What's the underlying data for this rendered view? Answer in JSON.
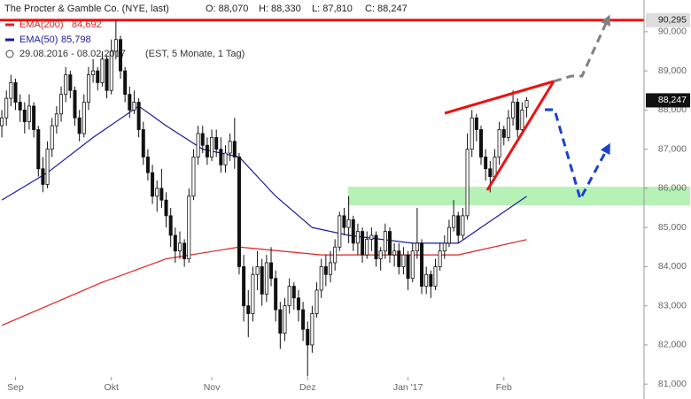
{
  "chart_data": {
    "type": "candlestick",
    "title": "The Procter & Gamble Co. (NYE, last)",
    "ohlc_labels": [
      "O: 88,070",
      "H: 88,330",
      "L: 87,810",
      "C: 88,247"
    ],
    "period": "29.08.2016 - 08.02.2017",
    "period_note": "(EST, 5 Monate, 1 Tag)",
    "candles": [
      [
        87.6,
        88.0,
        87.3,
        87.8
      ],
      [
        87.8,
        88.5,
        87.6,
        88.3
      ],
      [
        88.3,
        88.9,
        88.1,
        88.7
      ],
      [
        88.7,
        88.8,
        88.0,
        88.2
      ],
      [
        88.2,
        88.4,
        87.7,
        88.0
      ],
      [
        88.0,
        88.2,
        87.4,
        87.7
      ],
      [
        87.7,
        88.4,
        87.5,
        88.1
      ],
      [
        88.1,
        88.2,
        87.3,
        87.5
      ],
      [
        87.5,
        87.6,
        86.3,
        86.5
      ],
      [
        86.5,
        86.8,
        85.9,
        86.1
      ],
      [
        86.1,
        87.2,
        86.0,
        87.0
      ],
      [
        87.0,
        87.8,
        86.8,
        87.6
      ],
      [
        87.6,
        88.1,
        87.4,
        87.9
      ],
      [
        87.9,
        88.6,
        87.7,
        88.4
      ],
      [
        88.4,
        89.1,
        88.2,
        88.9
      ],
      [
        88.9,
        89.0,
        88.3,
        88.5
      ],
      [
        88.5,
        88.6,
        87.6,
        87.8
      ],
      [
        87.8,
        88.0,
        87.2,
        87.4
      ],
      [
        87.4,
        88.4,
        87.3,
        88.2
      ],
      [
        88.2,
        89.1,
        88.0,
        88.9
      ],
      [
        88.9,
        89.3,
        88.7,
        89.0
      ],
      [
        89.0,
        89.1,
        88.5,
        88.7
      ],
      [
        88.7,
        89.5,
        88.6,
        89.3
      ],
      [
        89.3,
        89.4,
        88.3,
        88.5
      ],
      [
        88.5,
        89.8,
        88.4,
        89.5
      ],
      [
        89.5,
        90.3,
        89.3,
        89.8
      ],
      [
        89.8,
        89.9,
        88.8,
        89.0
      ],
      [
        89.0,
        89.1,
        88.2,
        88.4
      ],
      [
        88.4,
        88.6,
        87.8,
        88.0
      ],
      [
        88.0,
        88.5,
        87.9,
        88.2
      ],
      [
        88.2,
        88.3,
        87.3,
        87.5
      ],
      [
        87.5,
        87.7,
        86.6,
        86.8
      ],
      [
        86.8,
        87.0,
        86.2,
        86.4
      ],
      [
        86.4,
        86.6,
        85.6,
        85.8
      ],
      [
        85.8,
        86.2,
        85.4,
        86.0
      ],
      [
        86.0,
        86.5,
        85.5,
        85.7
      ],
      [
        85.7,
        85.9,
        85.0,
        85.3
      ],
      [
        85.3,
        85.5,
        84.5,
        84.8
      ],
      [
        84.8,
        85.0,
        84.1,
        84.4
      ],
      [
        84.4,
        84.9,
        84.2,
        84.6
      ],
      [
        84.6,
        84.7,
        84.0,
        84.2
      ],
      [
        84.2,
        86.0,
        84.1,
        85.8
      ],
      [
        85.8,
        87.0,
        85.7,
        86.8
      ],
      [
        86.8,
        87.6,
        86.6,
        87.4
      ],
      [
        87.4,
        87.6,
        86.9,
        87.1
      ],
      [
        87.1,
        87.3,
        86.6,
        86.8
      ],
      [
        86.8,
        87.5,
        86.7,
        87.3
      ],
      [
        87.3,
        87.5,
        86.8,
        87.0
      ],
      [
        87.0,
        87.3,
        86.4,
        86.6
      ],
      [
        86.6,
        87.1,
        86.4,
        86.9
      ],
      [
        86.9,
        87.4,
        86.7,
        87.2
      ],
      [
        87.2,
        87.8,
        86.5,
        86.8
      ],
      [
        86.8,
        86.9,
        83.8,
        84.0
      ],
      [
        84.0,
        84.3,
        82.6,
        83.0
      ],
      [
        83.0,
        83.4,
        82.2,
        82.8
      ],
      [
        82.8,
        84.0,
        82.6,
        83.8
      ],
      [
        83.8,
        84.4,
        83.4,
        84.0
      ],
      [
        84.0,
        84.2,
        83.0,
        83.3
      ],
      [
        83.3,
        84.3,
        83.1,
        84.1
      ],
      [
        84.1,
        84.5,
        83.5,
        83.7
      ],
      [
        83.7,
        83.9,
        82.6,
        82.9
      ],
      [
        82.9,
        83.1,
        81.9,
        82.3
      ],
      [
        82.3,
        83.2,
        82.1,
        83.0
      ],
      [
        83.0,
        83.7,
        82.8,
        83.5
      ],
      [
        83.5,
        83.6,
        82.9,
        83.2
      ],
      [
        83.2,
        83.4,
        82.6,
        82.9
      ],
      [
        82.9,
        83.1,
        82.1,
        82.4
      ],
      [
        82.4,
        82.6,
        81.2,
        82.0
      ],
      [
        82.0,
        83.0,
        81.8,
        82.8
      ],
      [
        82.8,
        83.6,
        82.7,
        83.4
      ],
      [
        83.4,
        84.2,
        83.2,
        84.0
      ],
      [
        84.0,
        84.3,
        83.5,
        83.8
      ],
      [
        83.8,
        84.4,
        83.6,
        84.1
      ],
      [
        84.1,
        84.7,
        83.9,
        84.5
      ],
      [
        84.5,
        85.4,
        84.4,
        85.3
      ],
      [
        85.3,
        85.5,
        84.8,
        85.0
      ],
      [
        85.0,
        85.8,
        84.6,
        85.2
      ],
      [
        85.2,
        85.3,
        84.4,
        84.6
      ],
      [
        84.6,
        85.1,
        84.3,
        84.9
      ],
      [
        84.9,
        85.0,
        84.1,
        84.3
      ],
      [
        84.3,
        84.9,
        84.2,
        84.7
      ],
      [
        84.7,
        85.0,
        84.4,
        84.8
      ],
      [
        84.8,
        84.9,
        84.0,
        84.2
      ],
      [
        84.2,
        84.5,
        83.9,
        84.4
      ],
      [
        84.4,
        85.1,
        84.2,
        84.9
      ],
      [
        84.9,
        85.0,
        84.1,
        84.3
      ],
      [
        84.3,
        84.6,
        84.0,
        84.4
      ],
      [
        84.4,
        84.6,
        83.8,
        84.0
      ],
      [
        84.0,
        84.5,
        83.8,
        84.3
      ],
      [
        84.3,
        84.4,
        83.4,
        83.7
      ],
      [
        83.7,
        84.6,
        83.6,
        84.4
      ],
      [
        84.4,
        85.5,
        84.2,
        84.6
      ],
      [
        84.6,
        84.7,
        83.3,
        83.5
      ],
      [
        83.5,
        84.0,
        83.3,
        83.8
      ],
      [
        83.8,
        83.9,
        83.2,
        83.5
      ],
      [
        83.5,
        84.2,
        83.4,
        84.0
      ],
      [
        84.0,
        84.6,
        83.9,
        84.4
      ],
      [
        84.4,
        84.8,
        84.2,
        84.6
      ],
      [
        84.6,
        85.2,
        84.5,
        85.0
      ],
      [
        85.0,
        85.7,
        84.9,
        85.3
      ],
      [
        85.3,
        85.4,
        84.6,
        84.8
      ],
      [
        84.8,
        85.5,
        84.7,
        85.3
      ],
      [
        85.3,
        87.4,
        85.2,
        87.0
      ],
      [
        87.0,
        88.0,
        86.8,
        87.8
      ],
      [
        87.8,
        87.9,
        87.2,
        87.5
      ],
      [
        87.5,
        87.6,
        86.6,
        86.8
      ],
      [
        86.8,
        87.0,
        86.2,
        86.5
      ],
      [
        86.5,
        86.7,
        85.9,
        86.3
      ],
      [
        86.3,
        87.0,
        86.2,
        86.8
      ],
      [
        86.8,
        87.7,
        86.6,
        87.5
      ],
      [
        87.5,
        87.6,
        87.1,
        87.3
      ],
      [
        87.3,
        88.0,
        87.2,
        87.8
      ],
      [
        87.8,
        88.5,
        87.6,
        88.2
      ],
      [
        88.2,
        88.3,
        87.3,
        87.5
      ],
      [
        87.5,
        88.2,
        87.4,
        88.0
      ],
      [
        88.07,
        88.33,
        87.81,
        88.247
      ]
    ],
    "last_label": "88,247",
    "series": [
      {
        "name": "EMA(200)",
        "value_label": "84,692",
        "color": "#e02020",
        "x": [
          0,
          22,
          36,
          52,
          70,
          90,
          100,
          115
        ],
        "values": [
          82.5,
          83.6,
          84.2,
          84.5,
          84.3,
          84.3,
          84.3,
          84.692
        ]
      },
      {
        "name": "EMA(50)",
        "value_label": "85,798",
        "color": "#1a1aa0",
        "x": [
          0,
          10,
          20,
          30,
          36,
          44,
          52,
          60,
          68,
          76,
          90,
          100,
          105,
          115
        ],
        "values": [
          85.7,
          86.4,
          87.3,
          88.1,
          87.6,
          87.0,
          86.8,
          85.8,
          85.0,
          84.8,
          84.6,
          84.6,
          85.0,
          85.798
        ]
      }
    ],
    "hline": {
      "value": 90.295,
      "label": "90,295",
      "color": "#ee1111"
    },
    "ylim": [
      80.62,
      90.81
    ],
    "yticks": [
      {
        "value": 81,
        "label": "81,000"
      },
      {
        "value": 82,
        "label": "82,000"
      },
      {
        "value": 83,
        "label": "83,000"
      },
      {
        "value": 84,
        "label": "84,000"
      },
      {
        "value": 85,
        "label": "85,000"
      },
      {
        "value": 86,
        "label": "86,000"
      },
      {
        "value": 87,
        "label": "87,000"
      },
      {
        "value": 88,
        "label": "88,000"
      },
      {
        "value": 89,
        "label": "89,000"
      },
      {
        "value": 90,
        "label": "90,000"
      }
    ],
    "xlim": [
      -0.4,
      151
    ],
    "xticks": [
      {
        "value": 3,
        "label": "Sep"
      },
      {
        "value": 24,
        "label": "Okt"
      },
      {
        "value": 46,
        "label": "Nov"
      },
      {
        "value": 67,
        "label": "Dez"
      },
      {
        "value": 89,
        "label": "Jan '17"
      },
      {
        "value": 110,
        "label": "Feb"
      }
    ]
  }
}
